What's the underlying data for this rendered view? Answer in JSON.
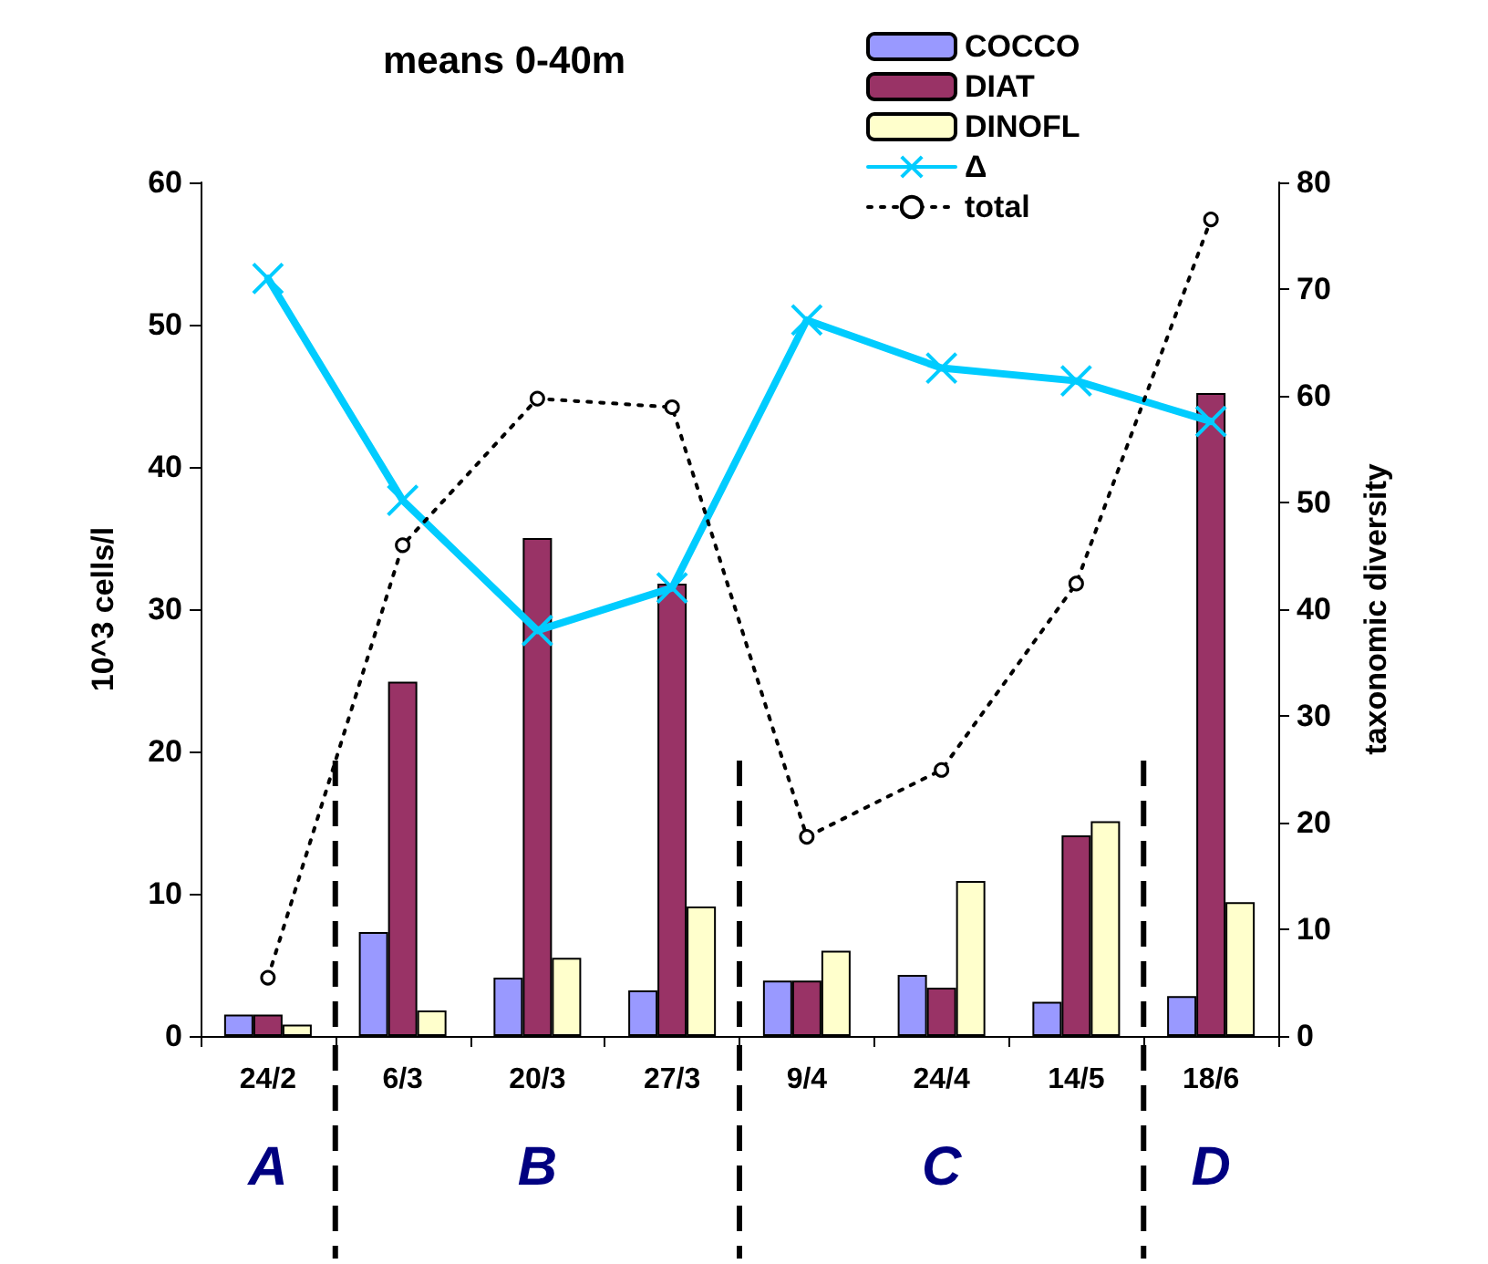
{
  "chart_data": {
    "type": "bar",
    "title": "means 0-40m",
    "ylabel": "10^3 cells/l",
    "y2label": "taxonomic diversity",
    "categories": [
      "24/2",
      "6/3",
      "20/3",
      "27/3",
      "9/4",
      "24/4",
      "14/5",
      "18/6"
    ],
    "series": [
      {
        "name": "COCCO",
        "color": "#9999ff",
        "values": [
          1.5,
          7.3,
          4.1,
          3.2,
          3.9,
          4.3,
          2.4,
          2.8
        ]
      },
      {
        "name": "DIAT",
        "color": "#993366",
        "values": [
          1.5,
          24.9,
          35.0,
          31.8,
          3.9,
          3.4,
          14.1,
          45.2
        ]
      },
      {
        "name": "DINOFL",
        "color": "#ffffcc",
        "values": [
          0.8,
          1.8,
          5.5,
          9.1,
          6.0,
          10.9,
          15.1,
          9.4
        ]
      },
      {
        "name": "Δ",
        "type": "line",
        "axis": "y2",
        "color": "#00ccff",
        "marker": "cross",
        "line_style": "solid",
        "values": [
          71.0,
          50.2,
          38.0,
          42.0,
          67.1,
          62.6,
          61.4,
          57.6
        ]
      },
      {
        "name": "total",
        "type": "line",
        "color": "#000000",
        "marker": "circle",
        "line_style": "dotted",
        "values": [
          4.1,
          34.5,
          44.8,
          44.2,
          14.0,
          18.7,
          31.8,
          57.4
        ]
      }
    ],
    "ylim": [
      0,
      60
    ],
    "yticks": [
      0,
      10,
      20,
      30,
      40,
      50,
      60
    ],
    "y2lim": [
      0,
      80
    ],
    "y2ticks": [
      0,
      10,
      20,
      30,
      40,
      50,
      60,
      70,
      80
    ],
    "annotations": [
      "A",
      "B",
      "C",
      "D"
    ],
    "grid": false,
    "legend": "top"
  }
}
